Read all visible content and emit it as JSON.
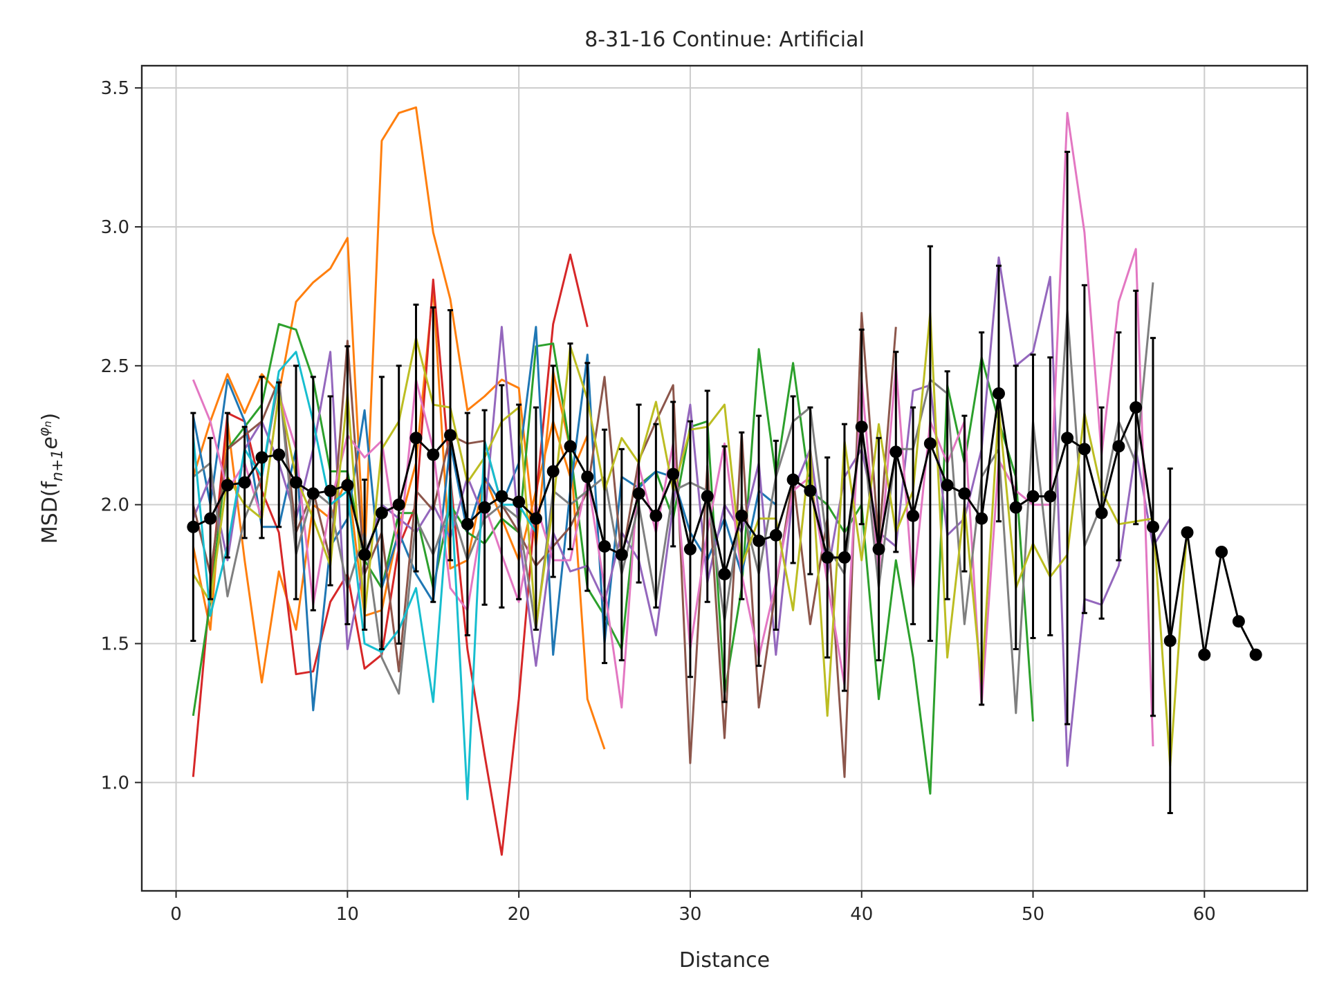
{
  "chart_data": {
    "type": "line",
    "title": "8-31-16 Continue: Artificial",
    "xlabel": "Distance",
    "ylabel": "MSD(f",
    "ylabel_sub": "n+1",
    "ylabel_e": "e",
    "ylabel_sup": "φ",
    "ylabel_sup_sub": "n",
    "ylabel_close": ")",
    "xlim": [
      -2,
      66
    ],
    "ylim": [
      0.61,
      3.58
    ],
    "xticks": [
      0,
      10,
      20,
      30,
      40,
      50,
      60
    ],
    "yticks": [
      1.0,
      1.5,
      2.0,
      2.5,
      3.0,
      3.5
    ],
    "xtick_labels": [
      "0",
      "10",
      "20",
      "30",
      "40",
      "50",
      "60"
    ],
    "ytick_labels": [
      "1.0",
      "1.5",
      "2.0",
      "2.5",
      "3.0",
      "3.5"
    ],
    "grid": true,
    "legend": "none",
    "series": [
      {
        "color": "#ff7f0e",
        "x": [
          1,
          2,
          3,
          4,
          5,
          6,
          7,
          8,
          9,
          10,
          11,
          12,
          13,
          14,
          15,
          16,
          17,
          18,
          19,
          20,
          21,
          22,
          23,
          24,
          25
        ],
        "values": [
          2.1,
          2.3,
          2.47,
          2.33,
          2.47,
          2.4,
          2.73,
          2.8,
          2.85,
          2.96,
          1.8,
          3.31,
          3.41,
          3.43,
          2.98,
          2.74,
          2.34,
          2.39,
          2.45,
          2.42,
          1.85,
          2.48,
          2.2,
          1.3,
          1.12
        ]
      },
      {
        "color": "#ff7f0e",
        "x": [
          1,
          2,
          3,
          4,
          5,
          6,
          7,
          8,
          9,
          10,
          11,
          12,
          13,
          14,
          15,
          16,
          17,
          18,
          19,
          20,
          21,
          22,
          23,
          24
        ],
        "values": [
          1.85,
          1.55,
          2.3,
          1.8,
          1.36,
          1.76,
          1.55,
          2.0,
          1.95,
          2.1,
          1.6,
          1.62,
          1.92,
          2.15,
          2.78,
          1.77,
          1.8,
          2.1,
          1.95,
          1.8,
          2.05,
          2.3,
          2.1,
          2.25
        ]
      },
      {
        "color": "#d62728",
        "x": [
          1,
          2,
          3,
          4,
          5,
          6,
          7,
          8,
          9,
          10,
          11,
          12,
          13,
          14,
          15,
          16,
          17,
          18,
          19,
          20,
          21,
          22,
          23,
          24
        ],
        "values": [
          1.02,
          1.7,
          2.33,
          2.3,
          2.05,
          1.9,
          1.39,
          1.4,
          1.65,
          1.75,
          1.41,
          1.46,
          1.85,
          2.0,
          2.81,
          2.1,
          1.48,
          1.1,
          0.74,
          1.3,
          2.02,
          2.65,
          2.9,
          2.64
        ]
      },
      {
        "color": "#2ca02c",
        "x": [
          1,
          2,
          3,
          4,
          5,
          6,
          7,
          8,
          9,
          10,
          11,
          12,
          13,
          14,
          15,
          16,
          17,
          18,
          19,
          20,
          21,
          22,
          23,
          24,
          25,
          26,
          27,
          28,
          29,
          30,
          31,
          32,
          33,
          34,
          35,
          36,
          37,
          38,
          39,
          40,
          41,
          42,
          43,
          44,
          45,
          46,
          47,
          48,
          49,
          50
        ],
        "values": [
          1.24,
          1.65,
          2.2,
          2.28,
          2.36,
          2.65,
          2.63,
          2.45,
          2.12,
          2.12,
          1.8,
          1.7,
          1.97,
          1.97,
          1.7,
          2.0,
          1.9,
          1.86,
          1.95,
          1.9,
          2.57,
          2.58,
          2.2,
          1.7,
          1.6,
          1.48,
          2.07,
          2.12,
          1.95,
          2.28,
          2.3,
          1.32,
          1.7,
          2.56,
          2.1,
          2.51,
          2.05,
          2.0,
          1.9,
          2.0,
          1.3,
          1.8,
          1.45,
          0.96,
          2.43,
          2.15,
          2.53,
          2.3,
          2.1,
          1.22
        ]
      },
      {
        "color": "#1f77b4",
        "x": [
          1,
          2,
          3,
          4,
          5,
          6,
          7,
          8,
          9,
          10,
          11,
          12,
          13,
          14,
          15,
          16,
          17,
          18,
          19,
          20,
          21,
          22,
          23,
          24,
          25,
          26,
          27,
          28,
          29,
          30,
          31,
          32,
          33,
          34,
          35
        ],
        "values": [
          2.32,
          2.0,
          2.45,
          2.3,
          1.92,
          1.92,
          2.2,
          1.26,
          1.85,
          1.95,
          2.34,
          1.7,
          1.9,
          1.75,
          1.65,
          2.22,
          1.9,
          2.1,
          2.0,
          2.15,
          2.64,
          1.46,
          2.05,
          2.54,
          1.5,
          2.1,
          2.06,
          2.12,
          2.1,
          1.9,
          1.8,
          1.95,
          1.75,
          2.05,
          2.0
        ]
      },
      {
        "color": "#9467bd",
        "x": [
          1,
          2,
          3,
          4,
          5,
          6,
          7,
          8,
          9,
          10,
          11,
          12,
          13,
          14,
          15,
          16,
          17,
          18,
          19,
          20,
          21,
          22,
          23,
          24,
          25,
          26,
          27,
          28,
          29,
          30,
          31,
          32,
          33,
          34,
          35,
          36,
          37,
          38,
          39,
          40,
          41,
          42,
          43,
          44,
          45,
          46,
          47,
          48,
          49,
          50,
          51,
          52,
          53,
          54,
          55,
          56,
          57,
          58
        ],
        "values": [
          1.95,
          2.1,
          1.8,
          2.2,
          2.3,
          2.15,
          1.95,
          2.2,
          2.55,
          1.48,
          1.8,
          2.0,
          1.95,
          1.9,
          2.0,
          1.88,
          2.1,
          1.95,
          2.64,
          1.9,
          1.42,
          1.9,
          1.76,
          1.78,
          1.65,
          1.9,
          1.8,
          1.53,
          2.0,
          2.36,
          1.72,
          2.0,
          1.9,
          2.15,
          1.46,
          2.05,
          2.2,
          1.75,
          2.1,
          2.2,
          1.9,
          1.85,
          2.41,
          2.43,
          1.89,
          1.95,
          2.2,
          2.89,
          2.5,
          2.55,
          2.82,
          1.06,
          1.66,
          1.64,
          1.78,
          2.2,
          1.85,
          1.95
        ]
      },
      {
        "color": "#8c564b",
        "x": [
          1,
          2,
          3,
          4,
          5,
          6,
          7,
          8,
          9,
          10,
          11,
          12,
          13,
          14,
          15,
          16,
          17,
          18,
          19,
          20,
          21,
          22,
          23,
          24,
          25,
          26,
          27,
          28,
          29,
          30,
          31,
          32,
          33,
          34,
          35,
          36,
          37,
          38,
          39,
          40,
          41,
          42
        ],
        "values": [
          2.0,
          1.75,
          2.2,
          2.25,
          2.3,
          2.45,
          1.9,
          2.05,
          1.8,
          2.59,
          1.75,
          1.9,
          1.4,
          2.05,
          1.98,
          2.25,
          2.22,
          2.23,
          2.0,
          1.9,
          1.78,
          1.85,
          1.92,
          2.05,
          2.46,
          1.8,
          2.16,
          2.3,
          2.43,
          1.07,
          2.14,
          1.16,
          2.26,
          1.27,
          1.7,
          2.1,
          1.57,
          1.95,
          1.02,
          2.69,
          1.86,
          2.64
        ]
      },
      {
        "color": "#e377c2",
        "x": [
          1,
          2,
          3,
          4,
          5,
          6,
          7,
          8,
          9,
          10,
          11,
          12,
          13,
          14,
          15,
          16,
          17,
          18,
          19,
          20,
          21,
          22,
          23,
          24,
          25,
          26,
          27,
          28,
          29,
          30,
          31,
          32,
          33,
          34,
          35,
          36,
          37,
          38,
          39,
          40,
          41,
          42,
          43,
          44,
          45,
          46,
          47,
          48,
          49,
          50,
          51,
          52,
          53,
          54,
          55,
          56,
          57
        ],
        "values": [
          2.45,
          2.3,
          2.05,
          2.15,
          1.95,
          2.4,
          2.2,
          1.64,
          2.0,
          2.25,
          2.17,
          2.23,
          1.82,
          2.45,
          2.2,
          1.7,
          1.62,
          2.0,
          1.82,
          1.65,
          2.0,
          1.8,
          1.8,
          2.1,
          1.7,
          1.27,
          2.14,
          1.9,
          2.22,
          1.48,
          1.9,
          2.22,
          1.75,
          1.45,
          1.72,
          2.05,
          2.1,
          1.72,
          1.35,
          2.45,
          1.75,
          2.5,
          1.7,
          2.3,
          2.15,
          2.3,
          1.28,
          2.16,
          2.05,
          2.0,
          2.0,
          3.41,
          2.98,
          2.18,
          2.73,
          2.92,
          1.13
        ]
      },
      {
        "color": "#7f7f7f",
        "x": [
          1,
          2,
          3,
          4,
          5,
          6,
          7,
          8,
          9,
          10,
          11,
          12,
          13,
          14,
          15,
          16,
          17,
          18,
          19,
          20,
          21,
          22,
          23,
          24,
          25,
          26,
          27,
          28,
          29,
          30,
          31,
          32,
          33,
          34,
          35,
          36,
          37,
          38,
          39,
          40,
          41,
          42,
          43,
          44,
          45,
          46,
          47,
          48,
          49,
          50,
          51,
          52,
          53,
          54,
          55,
          56,
          57
        ],
        "values": [
          2.1,
          2.15,
          1.67,
          1.95,
          2.1,
          2.45,
          1.82,
          2.05,
          2.0,
          1.7,
          1.9,
          1.45,
          1.32,
          1.95,
          1.82,
          2.0,
          1.8,
          1.95,
          2.0,
          1.95,
          1.55,
          2.05,
          2.0,
          2.05,
          2.1,
          1.75,
          2.0,
          1.65,
          2.05,
          2.08,
          2.05,
          1.58,
          2.0,
          1.75,
          2.1,
          2.3,
          2.35,
          1.85,
          1.75,
          2.3,
          1.7,
          2.2,
          2.2,
          2.45,
          2.4,
          1.57,
          2.1,
          2.2,
          1.25,
          2.3,
          1.75,
          2.7,
          1.85,
          2.0,
          2.3,
          2.15,
          2.8
        ]
      },
      {
        "color": "#bcbd22",
        "x": [
          1,
          2,
          3,
          4,
          5,
          6,
          7,
          8,
          9,
          10,
          11,
          12,
          13,
          14,
          15,
          16,
          17,
          18,
          19,
          20,
          21,
          22,
          23,
          24,
          25,
          26,
          27,
          28,
          29,
          30,
          31,
          32,
          33,
          34,
          35,
          36,
          37,
          38,
          39,
          40,
          41,
          42,
          43,
          44,
          45,
          46,
          47,
          48,
          49,
          50,
          51,
          52,
          53,
          54,
          55,
          56,
          57,
          58,
          59
        ],
        "values": [
          1.75,
          1.65,
          2.1,
          2.0,
          1.95,
          2.4,
          2.1,
          1.95,
          1.78,
          2.4,
          1.6,
          2.2,
          2.3,
          2.6,
          2.36,
          2.35,
          2.08,
          2.17,
          2.3,
          2.35,
          1.56,
          2.0,
          2.57,
          2.38,
          2.05,
          2.24,
          2.15,
          2.37,
          2.05,
          2.27,
          2.28,
          2.36,
          1.78,
          1.95,
          1.95,
          1.62,
          2.2,
          1.24,
          2.23,
          1.8,
          2.29,
          1.9,
          2.05,
          2.69,
          1.45,
          2.0,
          1.35,
          2.35,
          1.7,
          1.86,
          1.74,
          1.82,
          2.33,
          2.05,
          1.93,
          1.94,
          1.95,
          1.06,
          1.92
        ]
      },
      {
        "color": "#17becf",
        "x": [
          1,
          2,
          3,
          4,
          5,
          6,
          7,
          8,
          9,
          10,
          11,
          12,
          13,
          14,
          15,
          16,
          17,
          18,
          19,
          20,
          21
        ],
        "values": [
          2.25,
          1.6,
          1.85,
          2.2,
          2.1,
          2.48,
          2.55,
          2.3,
          2.0,
          2.05,
          1.5,
          1.47,
          1.55,
          1.7,
          1.29,
          2.1,
          0.94,
          2.23,
          2.0,
          2.0,
          1.9
        ]
      }
    ],
    "mean_series": {
      "color": "#000000",
      "x": [
        1,
        2,
        3,
        4,
        5,
        6,
        7,
        8,
        9,
        10,
        11,
        12,
        13,
        14,
        15,
        16,
        17,
        18,
        19,
        20,
        21,
        22,
        23,
        24,
        25,
        26,
        27,
        28,
        29,
        30,
        31,
        32,
        33,
        34,
        35,
        36,
        37,
        38,
        39,
        40,
        41,
        42,
        43,
        44,
        45,
        46,
        47,
        48,
        49,
        50,
        51,
        52,
        53,
        54,
        55,
        56,
        57,
        58,
        59,
        60,
        61,
        62,
        63
      ],
      "values": [
        1.92,
        1.95,
        2.07,
        2.08,
        2.17,
        2.18,
        2.08,
        2.04,
        2.05,
        2.07,
        1.82,
        1.97,
        2.0,
        2.24,
        2.18,
        2.25,
        1.93,
        1.99,
        2.03,
        2.01,
        1.95,
        2.12,
        2.21,
        2.1,
        1.85,
        1.82,
        2.04,
        1.96,
        2.11,
        1.84,
        2.03,
        1.75,
        1.96,
        1.87,
        1.89,
        2.09,
        2.05,
        1.81,
        1.81,
        2.28,
        1.84,
        2.19,
        1.96,
        2.22,
        2.07,
        2.04,
        1.95,
        2.4,
        1.99,
        2.03,
        2.03,
        2.24,
        2.2,
        1.97,
        2.21,
        2.35,
        1.92,
        1.51,
        1.9,
        1.46,
        1.83,
        1.58,
        1.46
      ],
      "err": [
        0.41,
        0.29,
        0.26,
        0.2,
        0.29,
        0.26,
        0.42,
        0.42,
        0.34,
        0.5,
        0.27,
        0.49,
        0.5,
        0.48,
        0.53,
        0.45,
        0.4,
        0.35,
        0.4,
        0.35,
        0.4,
        0.38,
        0.37,
        0.41,
        0.42,
        0.38,
        0.32,
        0.33,
        0.26,
        0.46,
        0.38,
        0.46,
        0.3,
        0.45,
        0.34,
        0.3,
        0.3,
        0.36,
        0.48,
        0.35,
        0.4,
        0.36,
        0.39,
        0.71,
        0.41,
        0.28,
        0.67,
        0.46,
        0.51,
        0.51,
        0.5,
        1.03,
        0.59,
        0.38,
        0.41,
        0.42,
        0.68,
        0.62,
        0,
        0,
        0,
        0,
        0
      ]
    }
  }
}
